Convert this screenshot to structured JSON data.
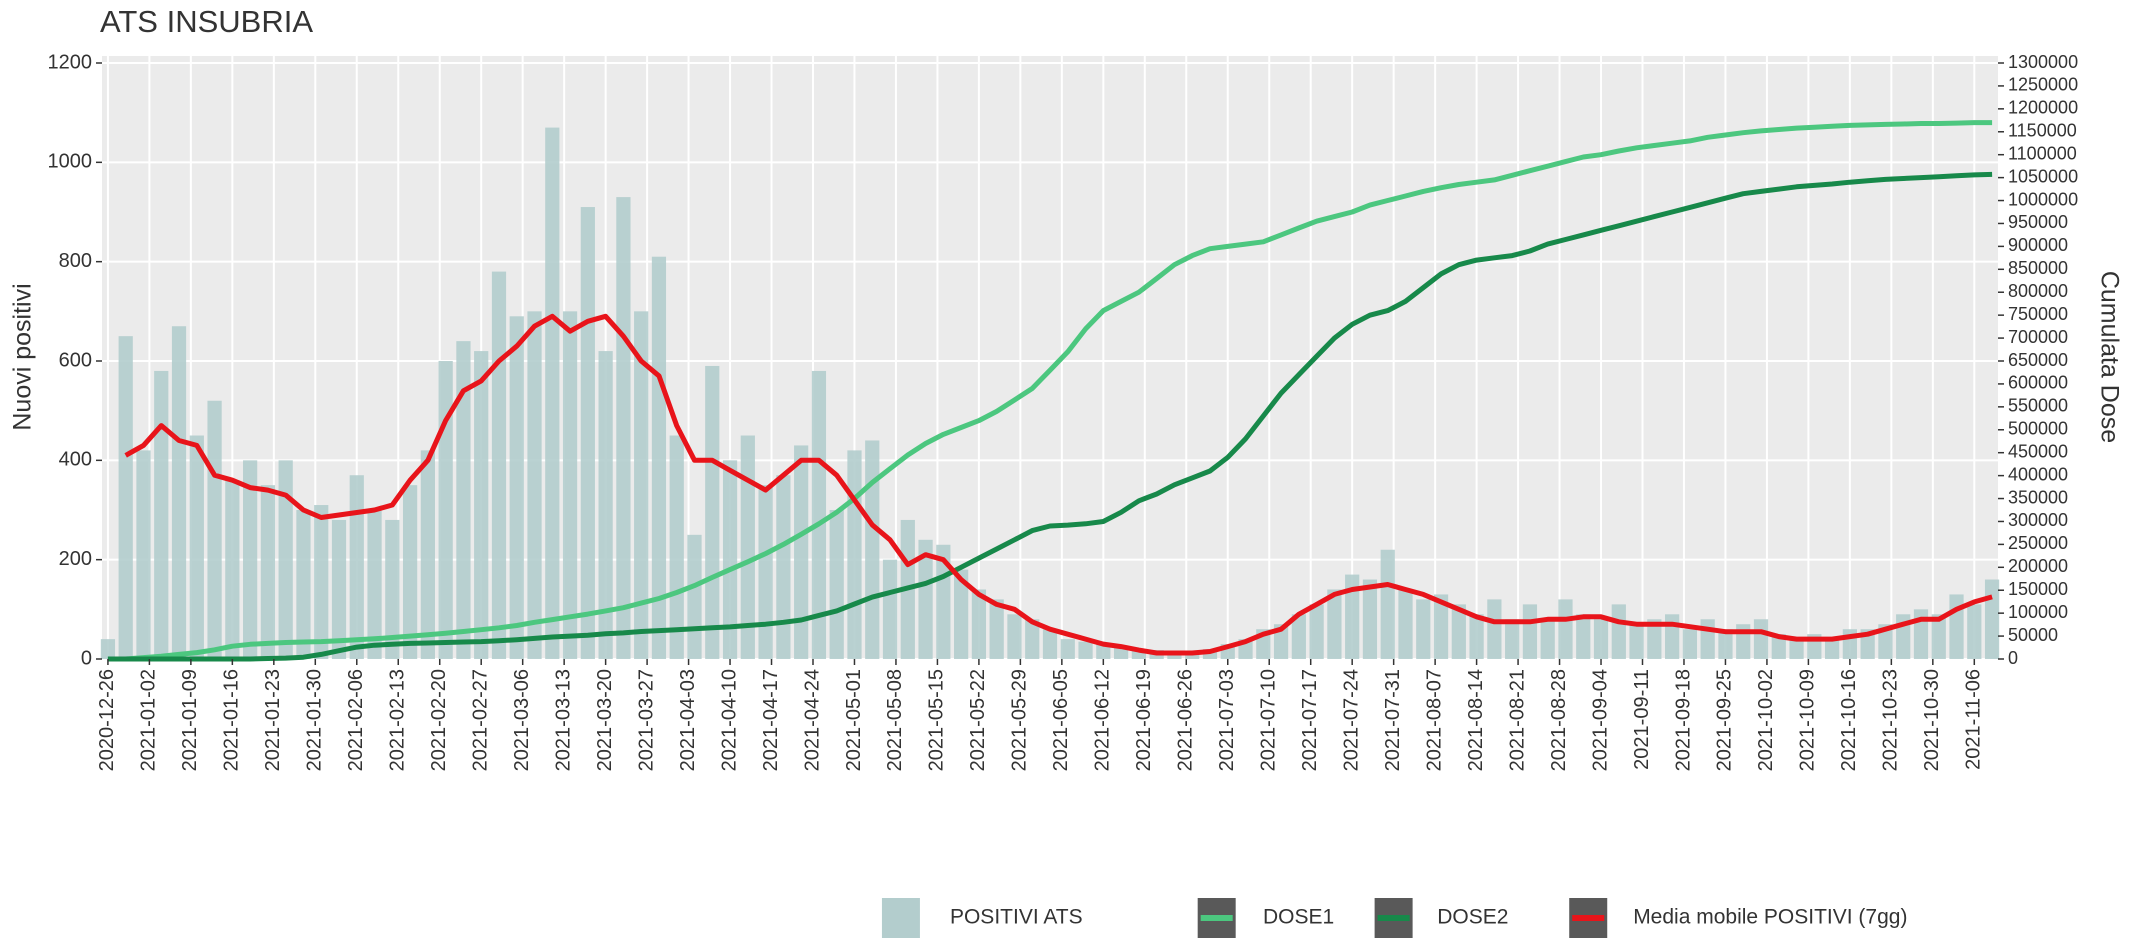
{
  "chart_data": {
    "type": "bar",
    "title": "ATS INSUBRIA",
    "y_label": "Nuovi positivi",
    "y2_label": "Cumulata Dose",
    "grid": true,
    "legend": "bottom",
    "xlim": [
      "2020-12-25",
      "2021-11-10"
    ],
    "ylim": [
      0,
      1200
    ],
    "yticks": [
      0,
      200,
      400,
      600,
      800,
      1000,
      1200
    ],
    "y2lim": [
      0,
      1300000
    ],
    "y2ticks": [
      0,
      50000,
      100000,
      150000,
      200000,
      250000,
      300000,
      350000,
      400000,
      450000,
      500000,
      550000,
      600000,
      650000,
      700000,
      750000,
      800000,
      850000,
      900000,
      950000,
      1000000,
      1050000,
      1100000,
      1150000,
      1200000,
      1250000,
      1300000
    ],
    "xticks": [
      "2020-12-26",
      "2021-01-02",
      "2021-01-09",
      "2021-01-16",
      "2021-01-23",
      "2021-01-30",
      "2021-02-06",
      "2021-02-13",
      "2021-02-20",
      "2021-02-27",
      "2021-03-06",
      "2021-03-13",
      "2021-03-20",
      "2021-03-27",
      "2021-04-03",
      "2021-04-10",
      "2021-04-17",
      "2021-04-24",
      "2021-05-01",
      "2021-05-08",
      "2021-05-15",
      "2021-05-22",
      "2021-05-29",
      "2021-06-05",
      "2021-06-12",
      "2021-06-19",
      "2021-06-26",
      "2021-07-03",
      "2021-07-10",
      "2021-07-17",
      "2021-07-24",
      "2021-07-31",
      "2021-08-07",
      "2021-08-14",
      "2021-08-21",
      "2021-08-28",
      "2021-09-04",
      "2021-09-11",
      "2021-09-18",
      "2021-09-25",
      "2021-10-02",
      "2021-10-09",
      "2021-10-16",
      "2021-10-23",
      "2021-10-30",
      "2021-11-06"
    ],
    "x": [
      "2020-12-26",
      "2020-12-29",
      "2021-01-01",
      "2021-01-04",
      "2021-01-07",
      "2021-01-10",
      "2021-01-13",
      "2021-01-16",
      "2021-01-19",
      "2021-01-22",
      "2021-01-25",
      "2021-01-28",
      "2021-01-31",
      "2021-02-03",
      "2021-02-06",
      "2021-02-09",
      "2021-02-12",
      "2021-02-15",
      "2021-02-18",
      "2021-02-21",
      "2021-02-24",
      "2021-02-27",
      "2021-03-02",
      "2021-03-05",
      "2021-03-08",
      "2021-03-11",
      "2021-03-14",
      "2021-03-17",
      "2021-03-20",
      "2021-03-23",
      "2021-03-26",
      "2021-03-29",
      "2021-04-01",
      "2021-04-04",
      "2021-04-07",
      "2021-04-10",
      "2021-04-13",
      "2021-04-16",
      "2021-04-19",
      "2021-04-22",
      "2021-04-25",
      "2021-04-28",
      "2021-05-01",
      "2021-05-04",
      "2021-05-07",
      "2021-05-10",
      "2021-05-13",
      "2021-05-16",
      "2021-05-19",
      "2021-05-22",
      "2021-05-25",
      "2021-05-28",
      "2021-05-31",
      "2021-06-03",
      "2021-06-06",
      "2021-06-09",
      "2021-06-12",
      "2021-06-15",
      "2021-06-18",
      "2021-06-21",
      "2021-06-24",
      "2021-06-27",
      "2021-06-30",
      "2021-07-03",
      "2021-07-06",
      "2021-07-09",
      "2021-07-12",
      "2021-07-15",
      "2021-07-18",
      "2021-07-21",
      "2021-07-24",
      "2021-07-27",
      "2021-07-30",
      "2021-08-02",
      "2021-08-05",
      "2021-08-08",
      "2021-08-11",
      "2021-08-14",
      "2021-08-17",
      "2021-08-20",
      "2021-08-23",
      "2021-08-26",
      "2021-08-29",
      "2021-09-01",
      "2021-09-04",
      "2021-09-07",
      "2021-09-10",
      "2021-09-13",
      "2021-09-16",
      "2021-09-19",
      "2021-09-22",
      "2021-09-25",
      "2021-09-28",
      "2021-10-01",
      "2021-10-04",
      "2021-10-07",
      "2021-10-10",
      "2021-10-13",
      "2021-10-16",
      "2021-10-19",
      "2021-10-22",
      "2021-10-25",
      "2021-10-28",
      "2021-10-31",
      "2021-11-03",
      "2021-11-06",
      "2021-11-09"
    ],
    "series": [
      {
        "name": "POSITIVI ATS",
        "type": "bar",
        "color": "#b3cdcd",
        "values": [
          40,
          650,
          420,
          580,
          670,
          450,
          520,
          360,
          400,
          350,
          400,
          300,
          310,
          280,
          370,
          300,
          280,
          350,
          420,
          600,
          640,
          620,
          780,
          690,
          700,
          1070,
          700,
          910,
          620,
          930,
          700,
          810,
          450,
          250,
          590,
          400,
          450,
          350,
          370,
          430,
          580,
          300,
          420,
          440,
          200,
          280,
          240,
          230,
          180,
          140,
          120,
          90,
          80,
          60,
          40,
          35,
          30,
          25,
          20,
          18,
          15,
          15,
          20,
          30,
          40,
          60,
          70,
          90,
          110,
          140,
          170,
          160,
          220,
          140,
          120,
          130,
          110,
          90,
          120,
          80,
          110,
          80,
          120,
          90,
          80,
          110,
          70,
          80,
          90,
          60,
          80,
          60,
          70,
          80,
          50,
          40,
          50,
          40,
          60,
          60,
          70,
          90,
          100,
          90,
          130,
          110,
          160
        ]
      },
      {
        "name": "DOSE1",
        "type": "line",
        "axis": "y2",
        "color": "#4cc77f",
        "values": [
          0,
          0,
          3000,
          6000,
          10000,
          14000,
          20000,
          28000,
          32000,
          34000,
          36000,
          37000,
          38000,
          40000,
          42000,
          44000,
          47000,
          50000,
          53000,
          56000,
          60000,
          64000,
          68000,
          73000,
          80000,
          86000,
          92000,
          98000,
          105000,
          112000,
          122000,
          132000,
          145000,
          160000,
          178000,
          195000,
          212000,
          230000,
          250000,
          272000,
          295000,
          320000,
          350000,
          385000,
          415000,
          445000,
          470000,
          490000,
          505000,
          520000,
          540000,
          565000,
          590000,
          630000,
          670000,
          720000,
          760000,
          780000,
          800000,
          830000,
          860000,
          880000,
          895000,
          900000,
          905000,
          910000,
          925000,
          940000,
          955000,
          965000,
          975000,
          990000,
          1000000,
          1010000,
          1020000,
          1028000,
          1035000,
          1040000,
          1045000,
          1055000,
          1065000,
          1075000,
          1085000,
          1095000,
          1100000,
          1108000,
          1115000,
          1120000,
          1125000,
          1130000,
          1138000,
          1143000,
          1148000,
          1152000,
          1155000,
          1158000,
          1160000,
          1162000,
          1164000,
          1165000,
          1166000,
          1167000,
          1168000,
          1168000,
          1169000,
          1170000,
          1170000
        ]
      },
      {
        "name": "DOSE2",
        "type": "line",
        "axis": "y2",
        "color": "#17894a",
        "values": [
          0,
          0,
          0,
          0,
          0,
          0,
          0,
          0,
          0,
          1000,
          2000,
          4000,
          10000,
          18000,
          26000,
          30000,
          32000,
          34000,
          35000,
          36000,
          37000,
          38000,
          40000,
          42000,
          45000,
          48000,
          50000,
          52000,
          55000,
          57000,
          60000,
          62000,
          64000,
          66000,
          68000,
          70000,
          73000,
          76000,
          80000,
          85000,
          95000,
          105000,
          120000,
          135000,
          145000,
          155000,
          165000,
          180000,
          200000,
          220000,
          240000,
          260000,
          280000,
          290000,
          292000,
          295000,
          300000,
          320000,
          345000,
          360000,
          380000,
          395000,
          410000,
          440000,
          480000,
          530000,
          580000,
          620000,
          660000,
          700000,
          730000,
          750000,
          760000,
          780000,
          810000,
          840000,
          860000,
          870000,
          875000,
          880000,
          890000,
          905000,
          915000,
          925000,
          935000,
          945000,
          955000,
          965000,
          975000,
          985000,
          995000,
          1005000,
          1015000,
          1020000,
          1025000,
          1030000,
          1033000,
          1036000,
          1040000,
          1043000,
          1046000,
          1048000,
          1050000,
          1052000,
          1054000,
          1056000,
          1057000
        ]
      },
      {
        "name": "Media mobile POSITIVI (7gg)",
        "type": "line",
        "color": "#e8141a",
        "values": [
          null,
          410,
          430,
          470,
          440,
          430,
          370,
          360,
          345,
          340,
          330,
          300,
          285,
          290,
          295,
          300,
          310,
          360,
          400,
          480,
          540,
          560,
          600,
          630,
          670,
          690,
          660,
          680,
          690,
          650,
          600,
          570,
          470,
          400,
          400,
          380,
          360,
          340,
          370,
          400,
          400,
          370,
          320,
          270,
          240,
          190,
          210,
          200,
          160,
          130,
          110,
          100,
          75,
          60,
          50,
          40,
          30,
          25,
          18,
          12,
          12,
          12,
          15,
          25,
          35,
          50,
          60,
          90,
          110,
          130,
          140,
          145,
          150,
          140,
          130,
          115,
          100,
          85,
          75,
          75,
          75,
          80,
          80,
          85,
          85,
          75,
          70,
          70,
          70,
          65,
          60,
          55,
          55,
          55,
          45,
          40,
          40,
          40,
          45,
          50,
          60,
          70,
          80,
          80,
          100,
          115,
          125
        ]
      }
    ]
  }
}
